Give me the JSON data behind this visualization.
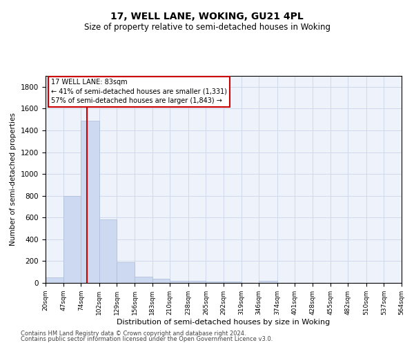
{
  "title1": "17, WELL LANE, WOKING, GU21 4PL",
  "title2": "Size of property relative to semi-detached houses in Woking",
  "xlabel": "Distribution of semi-detached houses by size in Woking",
  "ylabel": "Number of semi-detached properties",
  "property_size": 83,
  "annotation_title": "17 WELL LANE: 83sqm",
  "annotation_line1": "← 41% of semi-detached houses are smaller (1,331)",
  "annotation_line2": "57% of semi-detached houses are larger (1,843) →",
  "footer1": "Contains HM Land Registry data © Crown copyright and database right 2024.",
  "footer2": "Contains public sector information licensed under the Open Government Licence v3.0.",
  "bar_color": "#ccd9f0",
  "bar_edge_color": "#aabbd8",
  "red_line_color": "#cc0000",
  "annotation_box_color": "#cc0000",
  "bin_edges": [
    20,
    47,
    74,
    102,
    129,
    156,
    183,
    210,
    238,
    265,
    292,
    319,
    346,
    374,
    401,
    428,
    455,
    482,
    510,
    537,
    564
  ],
  "bar_heights": [
    50,
    800,
    1490,
    580,
    190,
    60,
    40,
    20,
    20,
    15,
    10,
    0,
    20,
    0,
    0,
    0,
    0,
    0,
    0,
    0
  ],
  "ylim": [
    0,
    1900
  ],
  "yticks": [
    0,
    200,
    400,
    600,
    800,
    1000,
    1200,
    1400,
    1600,
    1800
  ],
  "grid_color": "#d0d8ec",
  "background_color": "#eef2fa",
  "title1_fontsize": 10,
  "title2_fontsize": 8.5,
  "xlabel_fontsize": 8,
  "ylabel_fontsize": 7.5,
  "xtick_fontsize": 6.5,
  "ytick_fontsize": 7.5,
  "annotation_fontsize": 7,
  "footer_fontsize": 6
}
